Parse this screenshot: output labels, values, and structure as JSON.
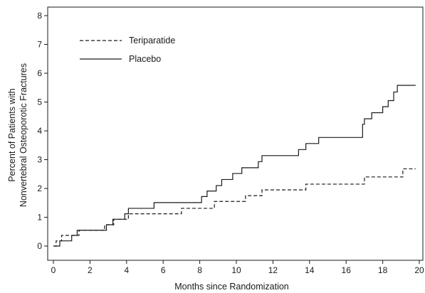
{
  "chart_data": {
    "type": "line",
    "step": true,
    "xlabel": "Months since Randomization",
    "ylabel_lines": [
      "Percent of Patients with",
      "Nonvertebral Osteoporotic Fractures"
    ],
    "xlim": [
      0,
      20
    ],
    "ylim": [
      0,
      8
    ],
    "xticks": [
      "0",
      "2",
      "4",
      "6",
      "8",
      "10",
      "12",
      "14",
      "16",
      "18",
      "20"
    ],
    "yticks": [
      "0",
      "1",
      "2",
      "3",
      "4",
      "5",
      "6",
      "7",
      "8"
    ],
    "grid": false,
    "legend_position": "top-left",
    "series": [
      {
        "name": "Teriparatide",
        "line_style": "dashed",
        "color": "#1a1a1a",
        "x": [
          0,
          0.15,
          0.45,
          1.4,
          2.8,
          3.3,
          4.1,
          7.0,
          8.8,
          10.5,
          11.4,
          13.8,
          17.0,
          19.1,
          19.8
        ],
        "y": [
          0.0,
          0.18,
          0.37,
          0.55,
          0.74,
          0.93,
          1.12,
          1.31,
          1.55,
          1.75,
          1.95,
          2.15,
          2.4,
          2.68,
          2.68
        ]
      },
      {
        "name": "Placebo",
        "line_style": "solid",
        "color": "#1a1a1a",
        "x": [
          0,
          0.35,
          1.0,
          1.3,
          2.9,
          3.25,
          3.9,
          4.1,
          5.5,
          8.1,
          8.4,
          8.9,
          9.2,
          9.8,
          10.3,
          11.2,
          11.4,
          11.8,
          13.4,
          13.8,
          14.5,
          16.9,
          17.0,
          17.4,
          18.0,
          18.3,
          18.6,
          18.8,
          19.8
        ],
        "y": [
          0.0,
          0.18,
          0.37,
          0.55,
          0.74,
          0.93,
          1.12,
          1.31,
          1.51,
          1.72,
          1.91,
          2.1,
          2.31,
          2.52,
          2.72,
          2.93,
          3.14,
          3.14,
          3.35,
          3.56,
          3.77,
          4.23,
          4.42,
          4.63,
          4.84,
          5.05,
          5.35,
          5.58,
          5.58
        ]
      }
    ]
  }
}
